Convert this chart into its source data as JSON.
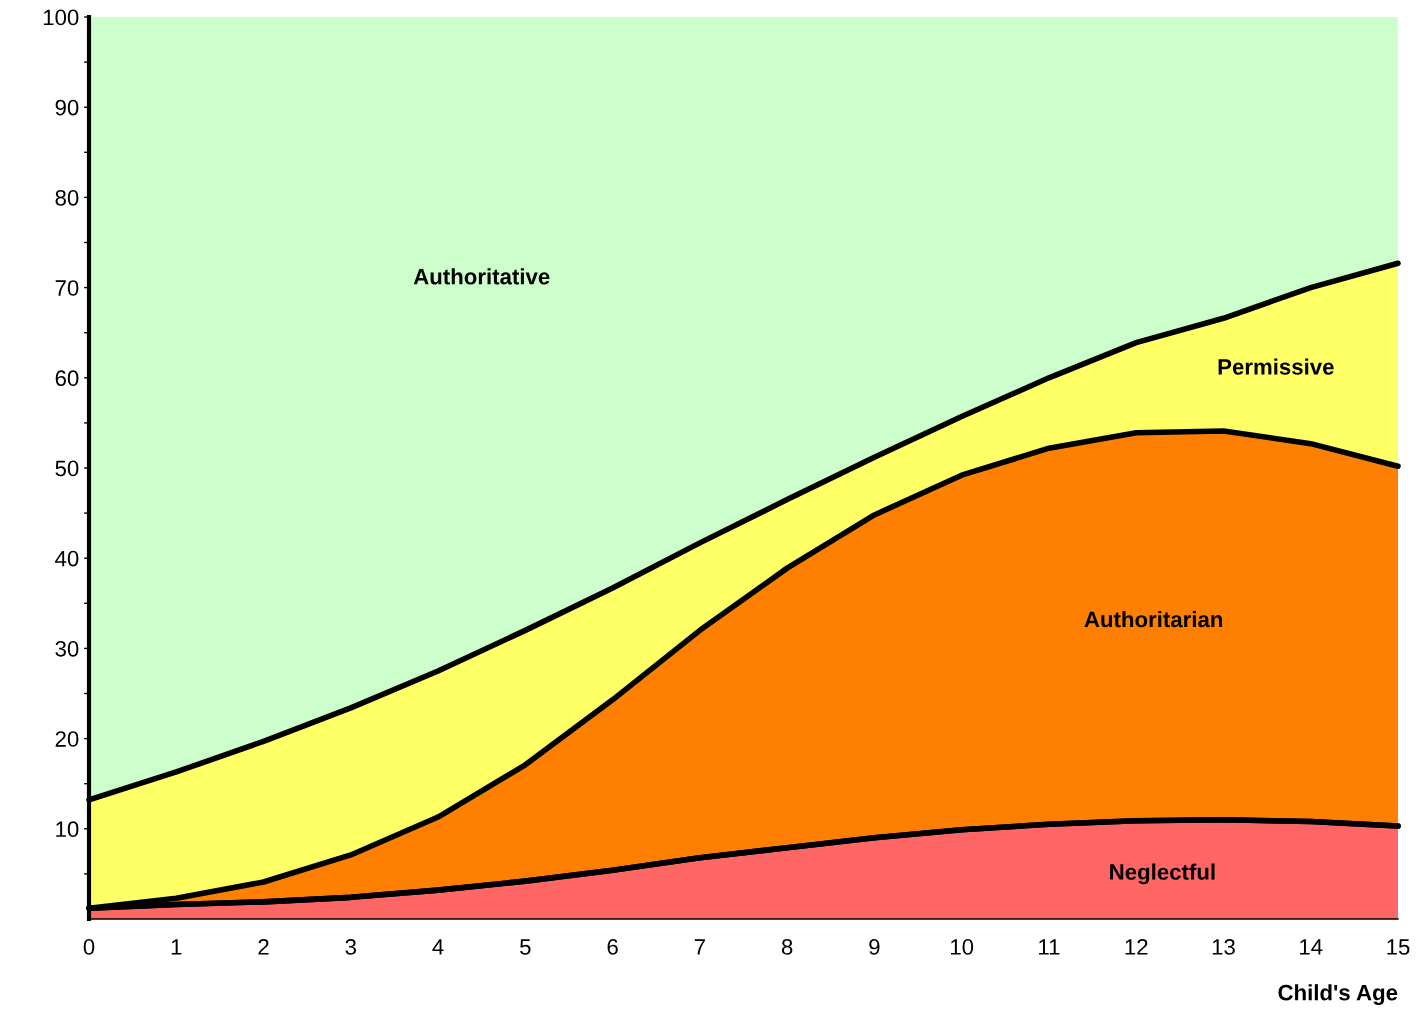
{
  "chart_data": {
    "type": "area",
    "stacked": true,
    "xlabel": "Child's Age",
    "x": [
      0,
      1,
      2,
      3,
      4,
      5,
      6,
      7,
      8,
      9,
      10,
      11,
      12,
      13,
      14,
      15
    ],
    "series": [
      {
        "name": "Neglectful",
        "color": "#ff6666",
        "values": [
          1.2,
          1.6,
          1.9,
          2.4,
          3.2,
          4.2,
          5.4,
          6.8,
          7.9,
          9.0,
          9.9,
          10.5,
          10.9,
          11.0,
          10.8,
          10.3
        ]
      },
      {
        "name": "Authoritarian",
        "color": "#ff8000",
        "values": [
          0.0,
          0.7,
          2.2,
          4.7,
          8.1,
          12.9,
          18.9,
          25.2,
          31.0,
          35.8,
          39.3,
          41.7,
          43.0,
          43.1,
          41.9,
          39.9
        ]
      },
      {
        "name": "Permissive",
        "color": "#ffff66",
        "values": [
          12.0,
          14.0,
          15.6,
          16.3,
          16.2,
          14.9,
          12.4,
          9.7,
          7.6,
          6.4,
          6.5,
          7.8,
          10.0,
          12.5,
          17.3,
          22.5
        ]
      },
      {
        "name": "Authoritative",
        "color": "#ccffcc",
        "values": [
          86.8,
          83.7,
          80.3,
          76.6,
          72.5,
          68.0,
          63.3,
          58.3,
          53.5,
          48.8,
          44.3,
          40.0,
          36.1,
          33.4,
          30.0,
          27.3
        ]
      }
    ],
    "xlim": [
      0,
      15
    ],
    "xticks": [
      0,
      1,
      2,
      3,
      4,
      5,
      6,
      7,
      8,
      9,
      10,
      11,
      12,
      13,
      14,
      15
    ],
    "ylim": [
      0,
      100
    ],
    "yticks": [
      {
        "value": 5,
        "label": null
      },
      10,
      {
        "value": 15,
        "label": null
      },
      20,
      {
        "value": 25,
        "label": null
      },
      30,
      {
        "value": 35,
        "label": null
      },
      40,
      {
        "value": 45,
        "label": null
      },
      50,
      {
        "value": 55,
        "label": null
      },
      60,
      {
        "value": 65,
        "label": null
      },
      70,
      {
        "value": 75,
        "label": null
      },
      80,
      {
        "value": 85,
        "label": null
      },
      90,
      {
        "value": 95,
        "label": null
      },
      100
    ],
    "grid": false,
    "legend": false
  }
}
